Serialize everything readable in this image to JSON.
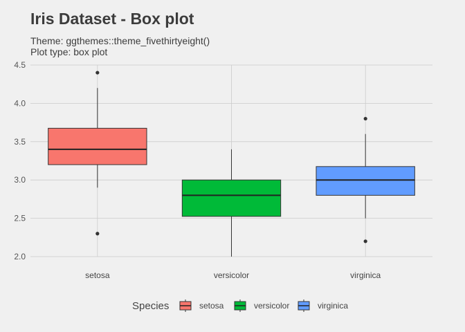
{
  "chart_data": {
    "type": "box",
    "title": "Iris Dataset - Box plot",
    "subtitle_lines": [
      "Theme: ggthemes::theme_fivethirtyeight()",
      "Plot type: box plot"
    ],
    "xlabel": "",
    "ylabel": "",
    "categories": [
      "setosa",
      "versicolor",
      "virginica"
    ],
    "ylim": [
      2.0,
      4.5
    ],
    "yticks": [
      2.0,
      2.5,
      3.0,
      3.5,
      4.0,
      4.5
    ],
    "ytick_labels": [
      "2.0",
      "2.5",
      "3.0",
      "3.5",
      "4.0",
      "4.5"
    ],
    "grid": true,
    "legend": {
      "title": "Species",
      "position": "bottom",
      "entries": [
        "setosa",
        "versicolor",
        "virginica"
      ]
    },
    "colors": [
      "#F8766D",
      "#00BA38",
      "#619CFF"
    ],
    "boxes": [
      {
        "category": "setosa",
        "whisker_low": 2.9,
        "q1": 3.2,
        "median": 3.4,
        "q3": 3.675,
        "whisker_high": 4.2,
        "outliers": [
          4.4,
          2.3
        ]
      },
      {
        "category": "versicolor",
        "whisker_low": 2.0,
        "q1": 2.525,
        "median": 2.8,
        "q3": 3.0,
        "whisker_high": 3.4,
        "outliers": []
      },
      {
        "category": "virginica",
        "whisker_low": 2.5,
        "q1": 2.8,
        "median": 3.0,
        "q3": 3.175,
        "whisker_high": 3.6,
        "outliers": [
          3.8,
          2.2
        ]
      }
    ]
  }
}
